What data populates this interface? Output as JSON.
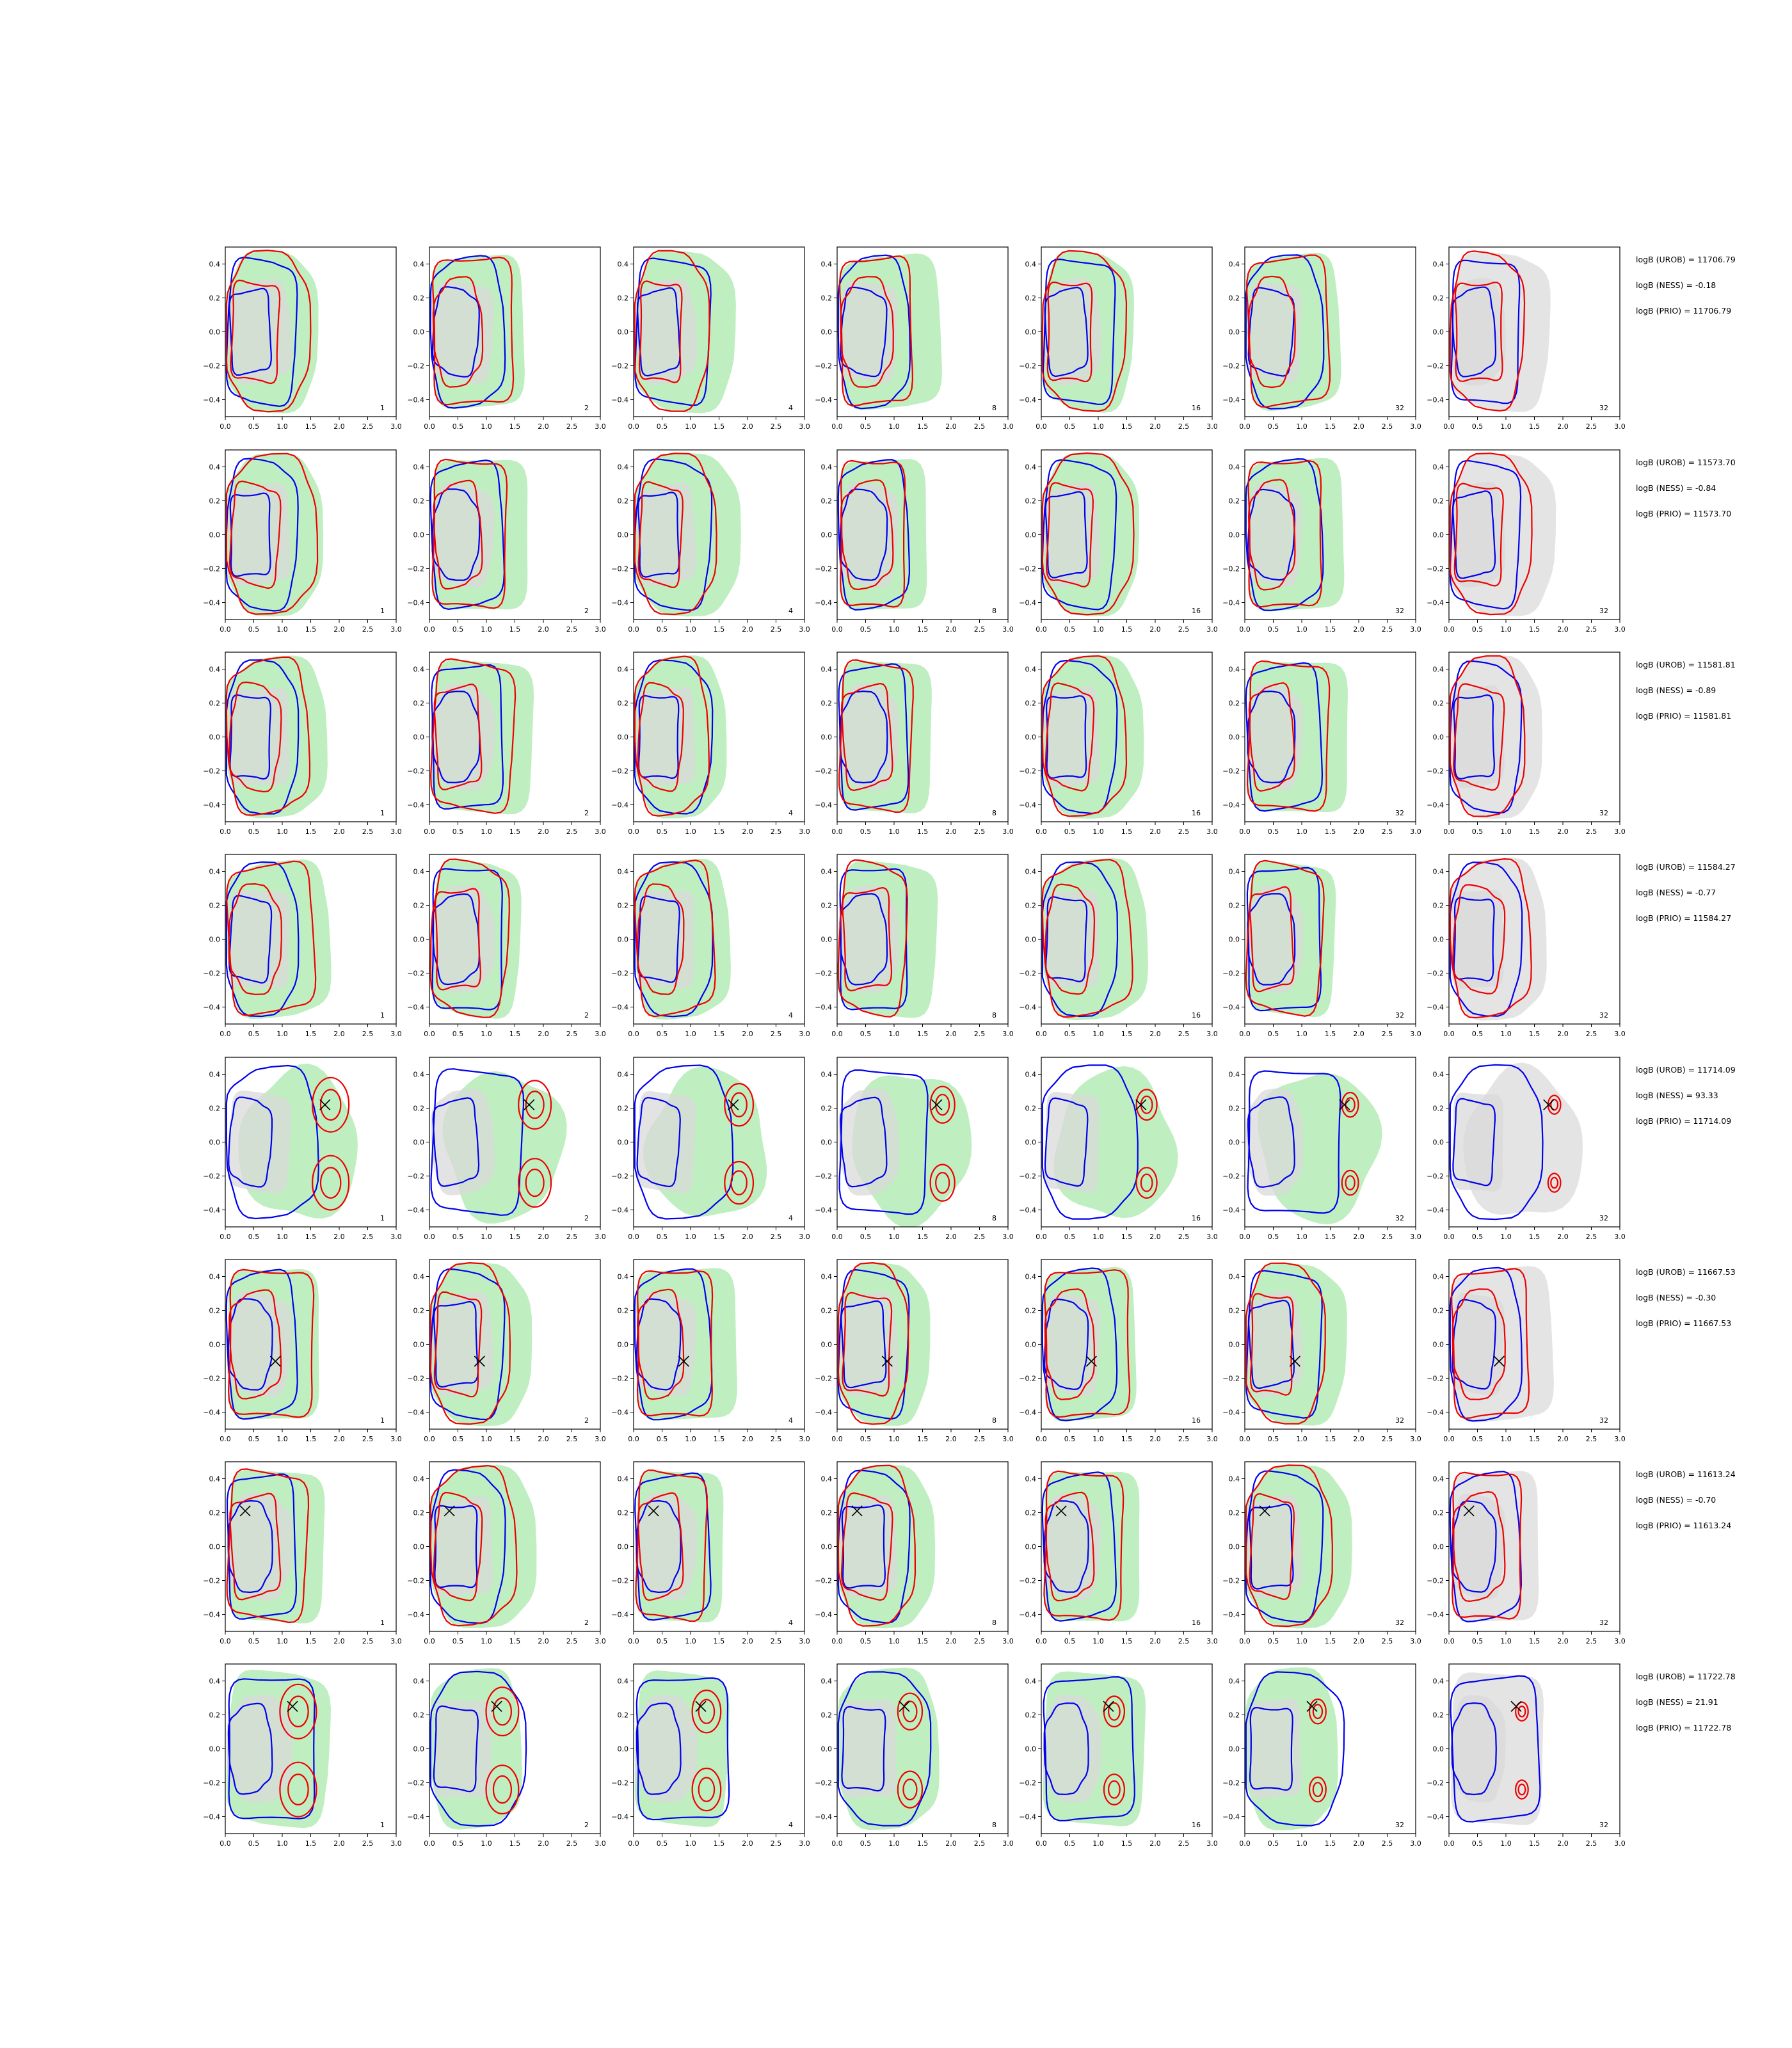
{
  "figure": {
    "rows": [
      {
        "log_uroB": "logB (UROB) = 11706.79",
        "log_ness": "logB (NESS) = -0.18",
        "log_prio": "logB (PRIO) = 11706.79",
        "marker": null,
        "variant": "plain"
      },
      {
        "log_uroB": "logB (UROB) = 11573.70",
        "log_ness": "logB (NESS) = -0.84",
        "log_prio": "logB (PRIO) = 11573.70",
        "marker": null,
        "variant": "plain"
      },
      {
        "log_uroB": "logB (UROB) = 11581.81",
        "log_ness": "logB (NESS) = -0.89",
        "log_prio": "logB (PRIO) = 11581.81",
        "marker": null,
        "variant": "plain"
      },
      {
        "log_uroB": "logB (UROB) = 11584.27",
        "log_ness": "logB (NESS) = -0.77",
        "log_prio": "logB (PRIO) = 11584.27",
        "marker": null,
        "variant": "plain"
      },
      {
        "log_uroB": "logB (UROB) = 11714.09",
        "log_ness": "logB (NESS) = 93.33",
        "log_prio": "logB (PRIO) = 11714.09",
        "marker": [
          1.75,
          0.22
        ],
        "variant": "split"
      },
      {
        "log_uroB": "logB (UROB) = 11667.53",
        "log_ness": "logB (NESS) = -0.30",
        "log_prio": "logB (PRIO) = 11667.53",
        "marker": [
          0.88,
          -0.1
        ],
        "variant": "plain"
      },
      {
        "log_uroB": "logB (UROB) = 11613.24",
        "log_ness": "logB (NESS) = -0.70",
        "log_prio": "logB (PRIO) = 11613.24",
        "marker": [
          0.35,
          0.21
        ],
        "variant": "plain"
      },
      {
        "log_uroB": "logB (UROB) = 11722.78",
        "log_ness": "logB (NESS) = 21.91",
        "log_prio": "logB (PRIO) = 11722.78",
        "marker": [
          1.18,
          0.25
        ],
        "variant": "split"
      }
    ],
    "column_labels": [
      "1",
      "2",
      "4",
      "8",
      "16",
      "32",
      "32"
    ]
  },
  "chart_data": {
    "type": "contour",
    "layout": "grid of 8 rows x 7 columns of density contour panels",
    "xlim": [
      0.0,
      3.0
    ],
    "ylim": [
      -0.5,
      0.5
    ],
    "xticks": [
      "0.0",
      "0.5",
      "1.0",
      "1.5",
      "2.0",
      "2.5",
      "3.0"
    ],
    "yticks": [
      "-0.4",
      "-0.2",
      "0.0",
      "0.2",
      "0.4"
    ],
    "grid": false,
    "colors": {
      "filled_density": "#bfeec0",
      "inner_density": "#d9d9d9",
      "last_column_density": "#e4e4e4",
      "contour_a": "#0000ee",
      "contour_b": "#ee0000",
      "marker": "#000000"
    },
    "panel_sizes": [
      1,
      2,
      4,
      8,
      16,
      32,
      32
    ]
  }
}
